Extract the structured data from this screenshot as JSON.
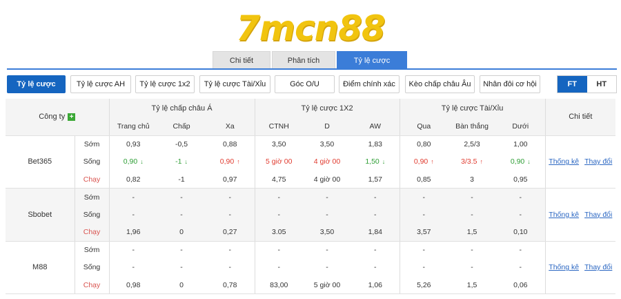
{
  "logo": {
    "text": "7mcn88"
  },
  "tabs": [
    "Chi tiết",
    "Phân tích",
    "Tỷ lệ cược"
  ],
  "buttons": [
    "Tỷ lệ cược",
    "Tỷ lệ cược AH",
    "Tỷ lệ cược 1x2",
    "Tỷ lệ cược Tài/Xỉu",
    "Góc O/U",
    "Điểm chính xác",
    "Kèo chấp châu Âu",
    "Nhân đôi cơ hội"
  ],
  "toggle": {
    "ft": "FT",
    "ht": "HT"
  },
  "header": {
    "company": "Công ty",
    "plus": "+",
    "groups": [
      "Tỷ lệ chấp châu Á",
      "Tỷ lệ cược 1X2",
      "Tỷ lệ cược Tài/Xỉu"
    ],
    "detail": "Chi tiết",
    "sub": [
      "Trang chủ",
      "Chấp",
      "Xa",
      "CTNH",
      "D",
      "AW",
      "Qua",
      "Bàn thắng",
      "Dưới"
    ]
  },
  "links": {
    "stats": "Thống kê",
    "changes": "Thay đổi"
  },
  "companies": [
    {
      "name": "Bet365",
      "rows": [
        {
          "kind": "Sớm",
          "cells": [
            {
              "v": "0,93"
            },
            {
              "v": "-0,5"
            },
            {
              "v": "0,88"
            },
            {
              "v": "3,50"
            },
            {
              "v": "3,50"
            },
            {
              "v": "1,83"
            },
            {
              "v": "0,80"
            },
            {
              "v": "2,5/3"
            },
            {
              "v": "1,00"
            }
          ]
        },
        {
          "kind": "Sống",
          "cells": [
            {
              "v": "0,90",
              "c": "green",
              "a": "↓"
            },
            {
              "v": "-1",
              "c": "green",
              "a": "↓"
            },
            {
              "v": "0,90",
              "c": "red",
              "a": "↑"
            },
            {
              "v": "5 giờ 00",
              "c": "red"
            },
            {
              "v": "4 giờ 00",
              "c": "red"
            },
            {
              "v": "1,50",
              "c": "green",
              "a": "↓"
            },
            {
              "v": "0,90",
              "c": "red",
              "a": "↑"
            },
            {
              "v": "3/3.5",
              "c": "red",
              "a": "↑"
            },
            {
              "v": "0,90",
              "c": "green",
              "a": "↓"
            }
          ]
        },
        {
          "kind": "Chạy",
          "cells": [
            {
              "v": "0,82"
            },
            {
              "v": "-1"
            },
            {
              "v": "0,97"
            },
            {
              "v": "4,75"
            },
            {
              "v": "4 giờ 00"
            },
            {
              "v": "1,57"
            },
            {
              "v": "0,85"
            },
            {
              "v": "3"
            },
            {
              "v": "0,95"
            }
          ]
        }
      ]
    },
    {
      "name": "Sbobet",
      "rows": [
        {
          "kind": "Sớm",
          "cells": [
            {
              "v": "-"
            },
            {
              "v": "-"
            },
            {
              "v": "-"
            },
            {
              "v": "-"
            },
            {
              "v": "-"
            },
            {
              "v": "-"
            },
            {
              "v": "-"
            },
            {
              "v": "-"
            },
            {
              "v": "-"
            }
          ]
        },
        {
          "kind": "Sống",
          "cells": [
            {
              "v": "-"
            },
            {
              "v": "-"
            },
            {
              "v": "-"
            },
            {
              "v": "-"
            },
            {
              "v": "-"
            },
            {
              "v": "-"
            },
            {
              "v": "-"
            },
            {
              "v": "-"
            },
            {
              "v": "-"
            }
          ]
        },
        {
          "kind": "Chạy",
          "cells": [
            {
              "v": "1,96"
            },
            {
              "v": "0"
            },
            {
              "v": "0,27"
            },
            {
              "v": "3.05"
            },
            {
              "v": "3,50"
            },
            {
              "v": "1,84"
            },
            {
              "v": "3,57"
            },
            {
              "v": "1,5"
            },
            {
              "v": "0,10"
            }
          ]
        }
      ]
    },
    {
      "name": "M88",
      "rows": [
        {
          "kind": "Sớm",
          "cells": [
            {
              "v": "-"
            },
            {
              "v": "-"
            },
            {
              "v": "-"
            },
            {
              "v": "-"
            },
            {
              "v": "-"
            },
            {
              "v": "-"
            },
            {
              "v": "-"
            },
            {
              "v": "-"
            },
            {
              "v": "-"
            }
          ]
        },
        {
          "kind": "Sống",
          "cells": [
            {
              "v": "-"
            },
            {
              "v": "-"
            },
            {
              "v": "-"
            },
            {
              "v": "-"
            },
            {
              "v": "-"
            },
            {
              "v": "-"
            },
            {
              "v": "-"
            },
            {
              "v": "-"
            },
            {
              "v": "-"
            }
          ]
        },
        {
          "kind": "Chạy",
          "cells": [
            {
              "v": "0,98"
            },
            {
              "v": "0"
            },
            {
              "v": "0,78"
            },
            {
              "v": "83,00"
            },
            {
              "v": "5 giờ 00"
            },
            {
              "v": "1,06"
            },
            {
              "v": "5,26"
            },
            {
              "v": "1,5"
            },
            {
              "v": "0,06"
            }
          ]
        }
      ]
    }
  ]
}
